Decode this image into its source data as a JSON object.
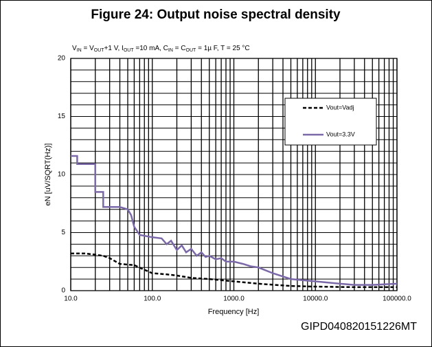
{
  "chart_data": {
    "type": "line",
    "title": "Figure 24: Output noise spectral density",
    "subtitle": [
      "V",
      "IN",
      " = V",
      "OUT",
      "+1 V, I",
      "OUT",
      " =10 mA, C",
      "IN",
      " = C",
      "OUT",
      " = 1µ F, T = 25 °C"
    ],
    "xlabel": "Frequency [Hz]",
    "ylabel": "eN [uV/SQRT(Hz)]",
    "annotation": "GIPD040820151226MT",
    "xscale": "log",
    "xlim": [
      10,
      100000
    ],
    "ylim": [
      0,
      20
    ],
    "xticks": [
      {
        "value": 10,
        "label": "10.0"
      },
      {
        "value": 100,
        "label": "100.0"
      },
      {
        "value": 1000,
        "label": "1000.0"
      },
      {
        "value": 10000,
        "label": "10000.0"
      },
      {
        "value": 100000,
        "label": "100000.0"
      }
    ],
    "xminorticks": [
      20,
      30,
      40,
      50,
      60,
      70,
      80,
      90,
      200,
      300,
      400,
      500,
      600,
      700,
      800,
      900,
      2000,
      3000,
      4000,
      5000,
      6000,
      7000,
      8000,
      9000,
      20000,
      30000,
      40000,
      50000,
      60000,
      70000,
      80000,
      90000
    ],
    "yticks": [
      0,
      5,
      10,
      15,
      20
    ],
    "yminorticks": [
      1,
      2,
      3,
      4,
      6,
      7,
      8,
      9,
      11,
      12,
      13,
      14,
      16,
      17,
      18,
      19
    ],
    "grid": true,
    "legend": "upper right",
    "series": [
      {
        "name": "Vout=Vadj",
        "color": "#000000",
        "dash": true,
        "x": [
          10,
          15,
          20,
          25,
          30,
          40,
          60,
          80,
          100,
          150,
          200,
          300,
          500,
          1000,
          2000,
          5000,
          10000,
          30000,
          100000
        ],
        "values": [
          3.2,
          3.2,
          3.1,
          3.0,
          2.8,
          2.3,
          2.2,
          1.8,
          1.5,
          1.4,
          1.3,
          1.1,
          1.0,
          0.8,
          0.6,
          0.4,
          0.35,
          0.3,
          0.3
        ]
      },
      {
        "name": "Vout=3.3V",
        "color": "#7b68a8",
        "dash": false,
        "x": [
          10,
          12,
          12,
          20,
          20,
          25,
          25,
          40,
          50,
          55,
          60,
          70,
          100,
          130,
          150,
          170,
          200,
          230,
          260,
          300,
          350,
          400,
          450,
          500,
          600,
          700,
          800,
          1000,
          1300,
          1600,
          2000,
          3000,
          5000,
          10000,
          20000,
          30000,
          50000,
          100000
        ],
        "values": [
          11.6,
          11.6,
          10.9,
          10.9,
          8.5,
          8.5,
          7.2,
          7.2,
          7.0,
          6.5,
          5.5,
          4.8,
          4.6,
          4.5,
          4.0,
          4.3,
          3.5,
          3.9,
          3.3,
          3.6,
          3.0,
          3.3,
          2.9,
          3.0,
          2.7,
          2.8,
          2.5,
          2.5,
          2.3,
          2.1,
          2.0,
          1.5,
          1.0,
          0.8,
          0.6,
          0.5,
          0.5,
          0.6
        ]
      }
    ]
  }
}
